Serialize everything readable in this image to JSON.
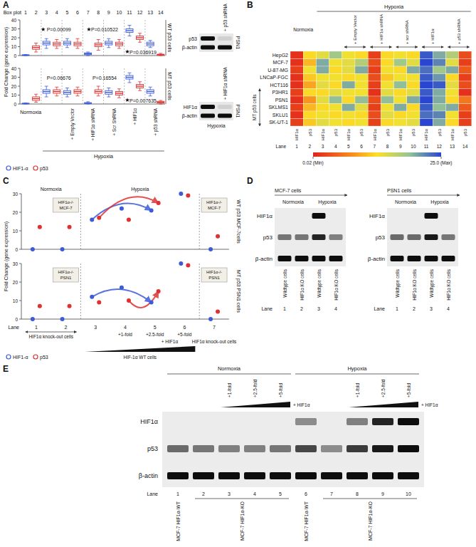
{
  "chart_data": [
    {
      "panel": "A",
      "type": "box",
      "x_title": "Box plot",
      "categories": [
        1,
        2,
        3,
        4,
        5,
        6,
        7,
        8,
        9,
        10,
        11,
        12,
        13,
        14
      ],
      "ylabel": "Fold Change (gene expression)",
      "ylim": [
        0,
        40
      ],
      "yticks": [
        0,
        10,
        20,
        30,
        40
      ],
      "series": [
        {
          "name": "HIF1-α",
          "color": "#3b5bdb"
        },
        {
          "name": "p53",
          "color": "#e03131"
        }
      ],
      "legend": "bottom-left",
      "group_labels": [
        "Normoxia",
        "+ Empty Vector",
        "+ HIF1α shRNA",
        "+ Scr ShRNA",
        "+ HIF1α",
        "+ p53 shRNA"
      ],
      "condition": "Hypoxia",
      "rows": [
        {
          "label": "WT p53 cells",
          "boxes": [
            [
              0,
              0.2,
              0.5,
              0.8,
              1.2
            ],
            [
              4,
              7,
              9,
              11,
              14
            ],
            [
              8,
              12,
              14,
              16,
              19
            ],
            [
              8,
              11,
              13,
              15,
              18
            ],
            [
              9,
              12,
              14,
              16,
              19
            ],
            [
              8,
              11,
              13,
              15,
              19
            ],
            [
              0,
              1,
              2,
              3,
              4
            ],
            [
              6,
              10,
              12,
              14,
              18
            ],
            [
              9,
              12,
              14,
              16,
              19
            ],
            [
              8,
              11,
              13,
              15,
              18
            ],
            [
              22,
              26,
              28,
              30,
              34
            ],
            [
              15,
              18,
              20,
              22,
              25
            ],
            [
              9,
              11,
              13,
              15,
              17
            ],
            [
              0,
              0.5,
              1,
              1.5,
              2.5
            ]
          ],
          "annotations": [
            "P=0.00099",
            "P=0.010522",
            "P=0.036919"
          ]
        },
        {
          "label": "MT p53 cells",
          "boxes": [
            [
              0,
              0.2,
              0.5,
              0.8,
              1.2
            ],
            [
              2,
              4,
              6,
              8,
              11
            ],
            [
              8,
              12,
              14,
              16,
              20
            ],
            [
              9,
              12,
              14,
              16,
              19
            ],
            [
              8,
              11,
              13,
              15,
              18
            ],
            [
              9,
              12,
              14,
              16,
              19
            ],
            [
              0,
              0.5,
              1,
              1.5,
              2.5
            ],
            [
              9,
              12,
              14,
              16,
              20
            ],
            [
              8,
              11,
              13,
              15,
              18
            ],
            [
              7,
              10,
              12,
              14,
              17
            ],
            [
              24,
              28,
              30,
              32,
              35
            ],
            [
              15,
              18,
              20,
              22,
              25
            ],
            [
              9,
              12,
              14,
              16,
              19
            ],
            [
              0,
              1,
              2,
              3,
              4
            ]
          ],
          "annotations": [
            "P=0.06676",
            "P=0.16554",
            "P=0.007635"
          ]
        }
      ],
      "blots": [
        {
          "label": "+ p53 shRNA",
          "cell": "PSN1",
          "rows": [
            {
              "name": "p53",
              "intensity": [
                1,
                0.1
              ]
            },
            {
              "name": "β-actin",
              "intensity": [
                1,
                1
              ]
            }
          ]
        },
        {
          "label": "+ HIF1α shRNA",
          "cell": "PSN1",
          "condition": "Hypoxia",
          "rows": [
            {
              "name": "HIF1α",
              "intensity": [
                1,
                0.1
              ]
            },
            {
              "name": "β-actin",
              "intensity": [
                1,
                1
              ]
            }
          ]
        }
      ]
    },
    {
      "panel": "B",
      "type": "heatmap",
      "rows": [
        "HepG2",
        "MCF-7",
        "U-87-MG",
        "LNCaP-FGC",
        "HCT116",
        "P3HR1",
        "PSN1",
        "SKLMS1",
        "SKLU1",
        "SK-UT-1"
      ],
      "row_group": "MT p53 cells",
      "columns": [
        "HIF1α",
        "p53",
        "HIF1α",
        "p53",
        "HIF1α",
        "p53",
        "HIF1α",
        "p53",
        "HIF1α",
        "p53",
        "HIF1α",
        "p53",
        "HIF1α",
        "p53"
      ],
      "lane_title": "Lane",
      "lanes": [
        1,
        2,
        3,
        4,
        5,
        6,
        7,
        8,
        9,
        10,
        11,
        12,
        13,
        14
      ],
      "cells": [
        [
          1,
          12,
          14,
          18,
          13,
          12,
          2,
          12,
          13,
          12,
          24,
          20,
          17,
          3
        ],
        [
          1,
          10,
          20,
          13,
          14,
          17,
          3,
          12,
          18,
          14,
          25,
          22,
          14,
          2
        ],
        [
          2,
          13,
          20,
          12,
          14,
          20,
          2,
          13,
          12,
          20,
          23,
          18,
          20,
          4
        ],
        [
          1,
          11,
          13,
          13,
          12,
          13,
          3,
          11,
          13,
          13,
          24,
          21,
          12,
          2
        ],
        [
          1,
          9,
          14,
          12,
          20,
          13,
          2,
          13,
          19,
          12,
          25,
          24,
          14,
          3
        ],
        [
          2,
          12,
          12,
          14,
          13,
          13,
          1,
          14,
          12,
          14,
          24,
          20,
          13,
          1
        ],
        [
          1,
          8,
          14,
          19,
          12,
          19,
          3,
          19,
          13,
          20,
          25,
          20,
          12,
          6
        ],
        [
          2,
          10,
          12,
          13,
          20,
          14,
          2,
          13,
          20,
          12,
          24,
          19,
          20,
          4
        ],
        [
          1,
          12,
          13,
          12,
          13,
          12,
          3,
          14,
          12,
          13,
          23,
          22,
          13,
          2
        ],
        [
          2,
          11,
          14,
          13,
          12,
          13,
          2,
          12,
          13,
          14,
          25,
          20,
          12,
          2
        ]
      ],
      "color_range": [
        0.02,
        25.0
      ],
      "color_ticks": [
        {
          "value": 0.02,
          "label": "0.02 (Min)"
        },
        {
          "value": 25.0,
          "label": "25.0 (Max)"
        }
      ],
      "group_labels": [
        "Normoxia",
        "+ Empty Vector",
        "+ HIF1α shRNA",
        "+ scr shRNA",
        "+ HIF1α",
        "+ p53 shRNA"
      ],
      "condition": "Hypoxia"
    },
    {
      "panel": "C",
      "type": "scatter",
      "ylabel": "Fold Change (gene expression)",
      "ylim": [
        0,
        30
      ],
      "yticks": [
        0,
        10,
        20,
        30
      ],
      "lane_title": "Lane",
      "categories": [
        1,
        2,
        3,
        4,
        5,
        6,
        7
      ],
      "series": [
        {
          "name": "HIF1-α",
          "color": "#3b5bdb"
        },
        {
          "name": "p53",
          "color": "#e03131"
        }
      ],
      "legend": "bottom-left",
      "condition_labels": [
        "Normoxia",
        "Hypoxia"
      ],
      "rows": [
        {
          "label": "WT p53 MCF-7cells",
          "ko_label": [
            "HIF1α-/-",
            "MCF-7"
          ],
          "values": [
            [
              0,
              0,
              16,
              22,
              21,
              30,
              0
            ],
            [
              12,
              12,
              17,
              16,
              25,
              29,
              7
            ]
          ]
        },
        {
          "label": "MT p53 PSN1 cells",
          "ko_label": [
            "HIF1α-/-",
            "PSN1"
          ],
          "values": [
            [
              0,
              0,
              12,
              17,
              9,
              30,
              0
            ],
            [
              7,
              7,
              9,
              10,
              15,
              29,
              4
            ]
          ]
        }
      ],
      "x_annotations": [
        "HIF1α knock-out cells",
        "+1-fold",
        "+2.5-fold",
        "+5-fold",
        "HIF1α knock-out cells"
      ],
      "gradient_labels": [
        "+ HIF1α",
        "HIF-1α WT cells"
      ]
    }
  ],
  "blot_panels": [
    {
      "panel": "D",
      "blots": [
        {
          "cell": "MCF-7 cells",
          "conditions": [
            "Normoxia",
            "Hypoxia"
          ],
          "columns": [
            "Wildtype cells",
            "HIF1α KO cells",
            "Wildtype cells",
            "HIF1α KO cells"
          ],
          "lane_title": "Lane",
          "lanes": [
            1,
            2,
            3,
            4
          ],
          "rows": [
            {
              "name": "HIF1α",
              "intensity": [
                0,
                0,
                1,
                0
              ]
            },
            {
              "name": "p53",
              "intensity": [
                0.55,
                0.55,
                0.9,
                0.5
              ]
            },
            {
              "name": "β-actin",
              "intensity": [
                1,
                1,
                1,
                1
              ]
            }
          ]
        },
        {
          "cell": "PSN1 cells",
          "conditions": [
            "Normoxia",
            "Hypoxia"
          ],
          "columns": [
            "Wildtype cells",
            "HIF1α KO cells",
            "Wildtype cells",
            "HIF1α KO cells"
          ],
          "lane_title": "Lane",
          "lanes": [
            1,
            2,
            3,
            4
          ],
          "rows": [
            {
              "name": "HIF1α",
              "intensity": [
                0,
                0,
                1,
                0
              ]
            },
            {
              "name": "p53",
              "intensity": [
                0.6,
                0.6,
                0.95,
                0.55
              ]
            },
            {
              "name": "β-actin",
              "intensity": [
                1,
                1,
                1,
                1
              ]
            }
          ]
        }
      ]
    },
    {
      "panel": "E",
      "conditions": [
        "Normoxia",
        "Hypoxia"
      ],
      "doses": [
        "+1-fold",
        "+2.5-fold",
        "+5-fold"
      ],
      "dose_title": "+ HIF1α",
      "lane_title": "Lane",
      "lanes": [
        1,
        2,
        3,
        4,
        5,
        6,
        7,
        8,
        9,
        10
      ],
      "columns": [
        "MCF-7 HIF1α-WT",
        "MCF-7 HIF1α-KO",
        "MCF-7 HIF1α-WT",
        "MCF-7 HIF1α-KO"
      ],
      "rows": [
        {
          "name": "HIF1α",
          "intensity": [
            0,
            0,
            0,
            0,
            0,
            0.45,
            0,
            0.5,
            0.9,
            1
          ]
        },
        {
          "name": "p53",
          "intensity": [
            0.6,
            0.55,
            0.5,
            0.5,
            0.55,
            0.75,
            0.45,
            0.8,
            0.95,
            1
          ]
        },
        {
          "name": "β-actin",
          "intensity": [
            1,
            1,
            1,
            1,
            1,
            1,
            1,
            1,
            1,
            1
          ]
        }
      ]
    }
  ]
}
